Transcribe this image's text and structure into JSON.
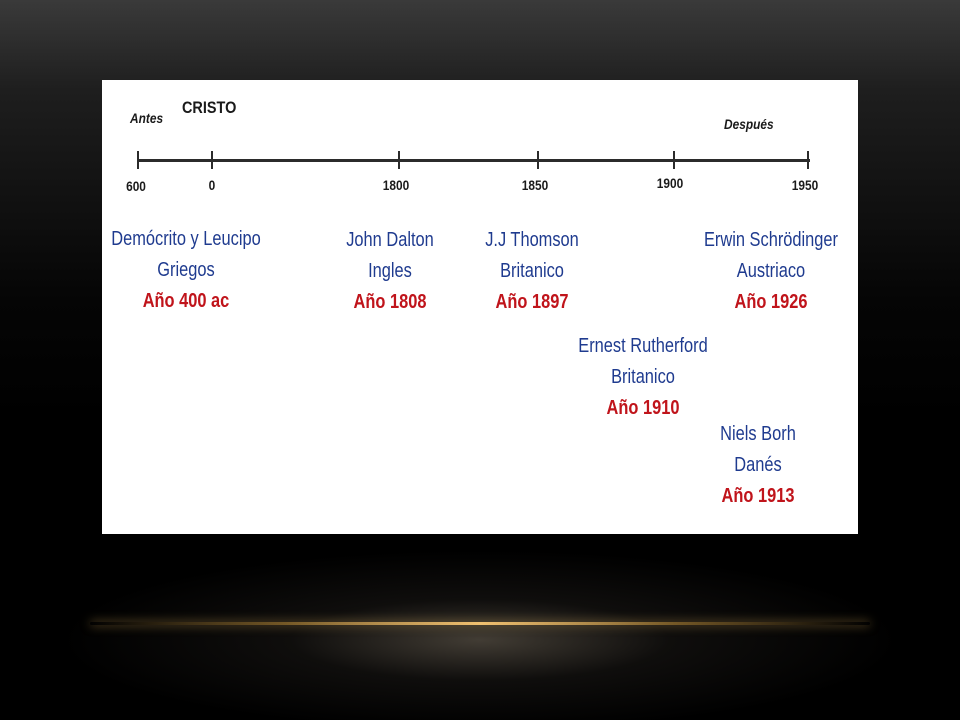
{
  "timeline": {
    "before_label": "Antes",
    "center_label": "CRISTO",
    "after_label": "Después",
    "ticks": [
      "600",
      "0",
      "1800",
      "1850",
      "1900",
      "1950"
    ],
    "entries": [
      {
        "name": "Demócrito y Leucipo",
        "nationality": "Griegos",
        "year": "Año 400 ac"
      },
      {
        "name": "John Dalton",
        "nationality": "Ingles",
        "year": "Año 1808"
      },
      {
        "name": "J.J Thomson",
        "nationality": "Britanico",
        "year": "Año 1897"
      },
      {
        "name": "Erwin Schrödinger",
        "nationality": "Austriaco",
        "year": "Año 1926"
      },
      {
        "name": "Ernest Rutherford",
        "nationality": "Britanico",
        "year": "Año 1910"
      },
      {
        "name": "Niels Borh",
        "nationality": "Danés",
        "year": "Año 1913"
      }
    ]
  },
  "colors": {
    "name_text": "#1f3b8f",
    "year_text": "#c0141b",
    "axis": "#2b2b2b",
    "panel_background": "#ffffff",
    "slide_background": "#000000",
    "accent_glow": "#f0c070"
  }
}
